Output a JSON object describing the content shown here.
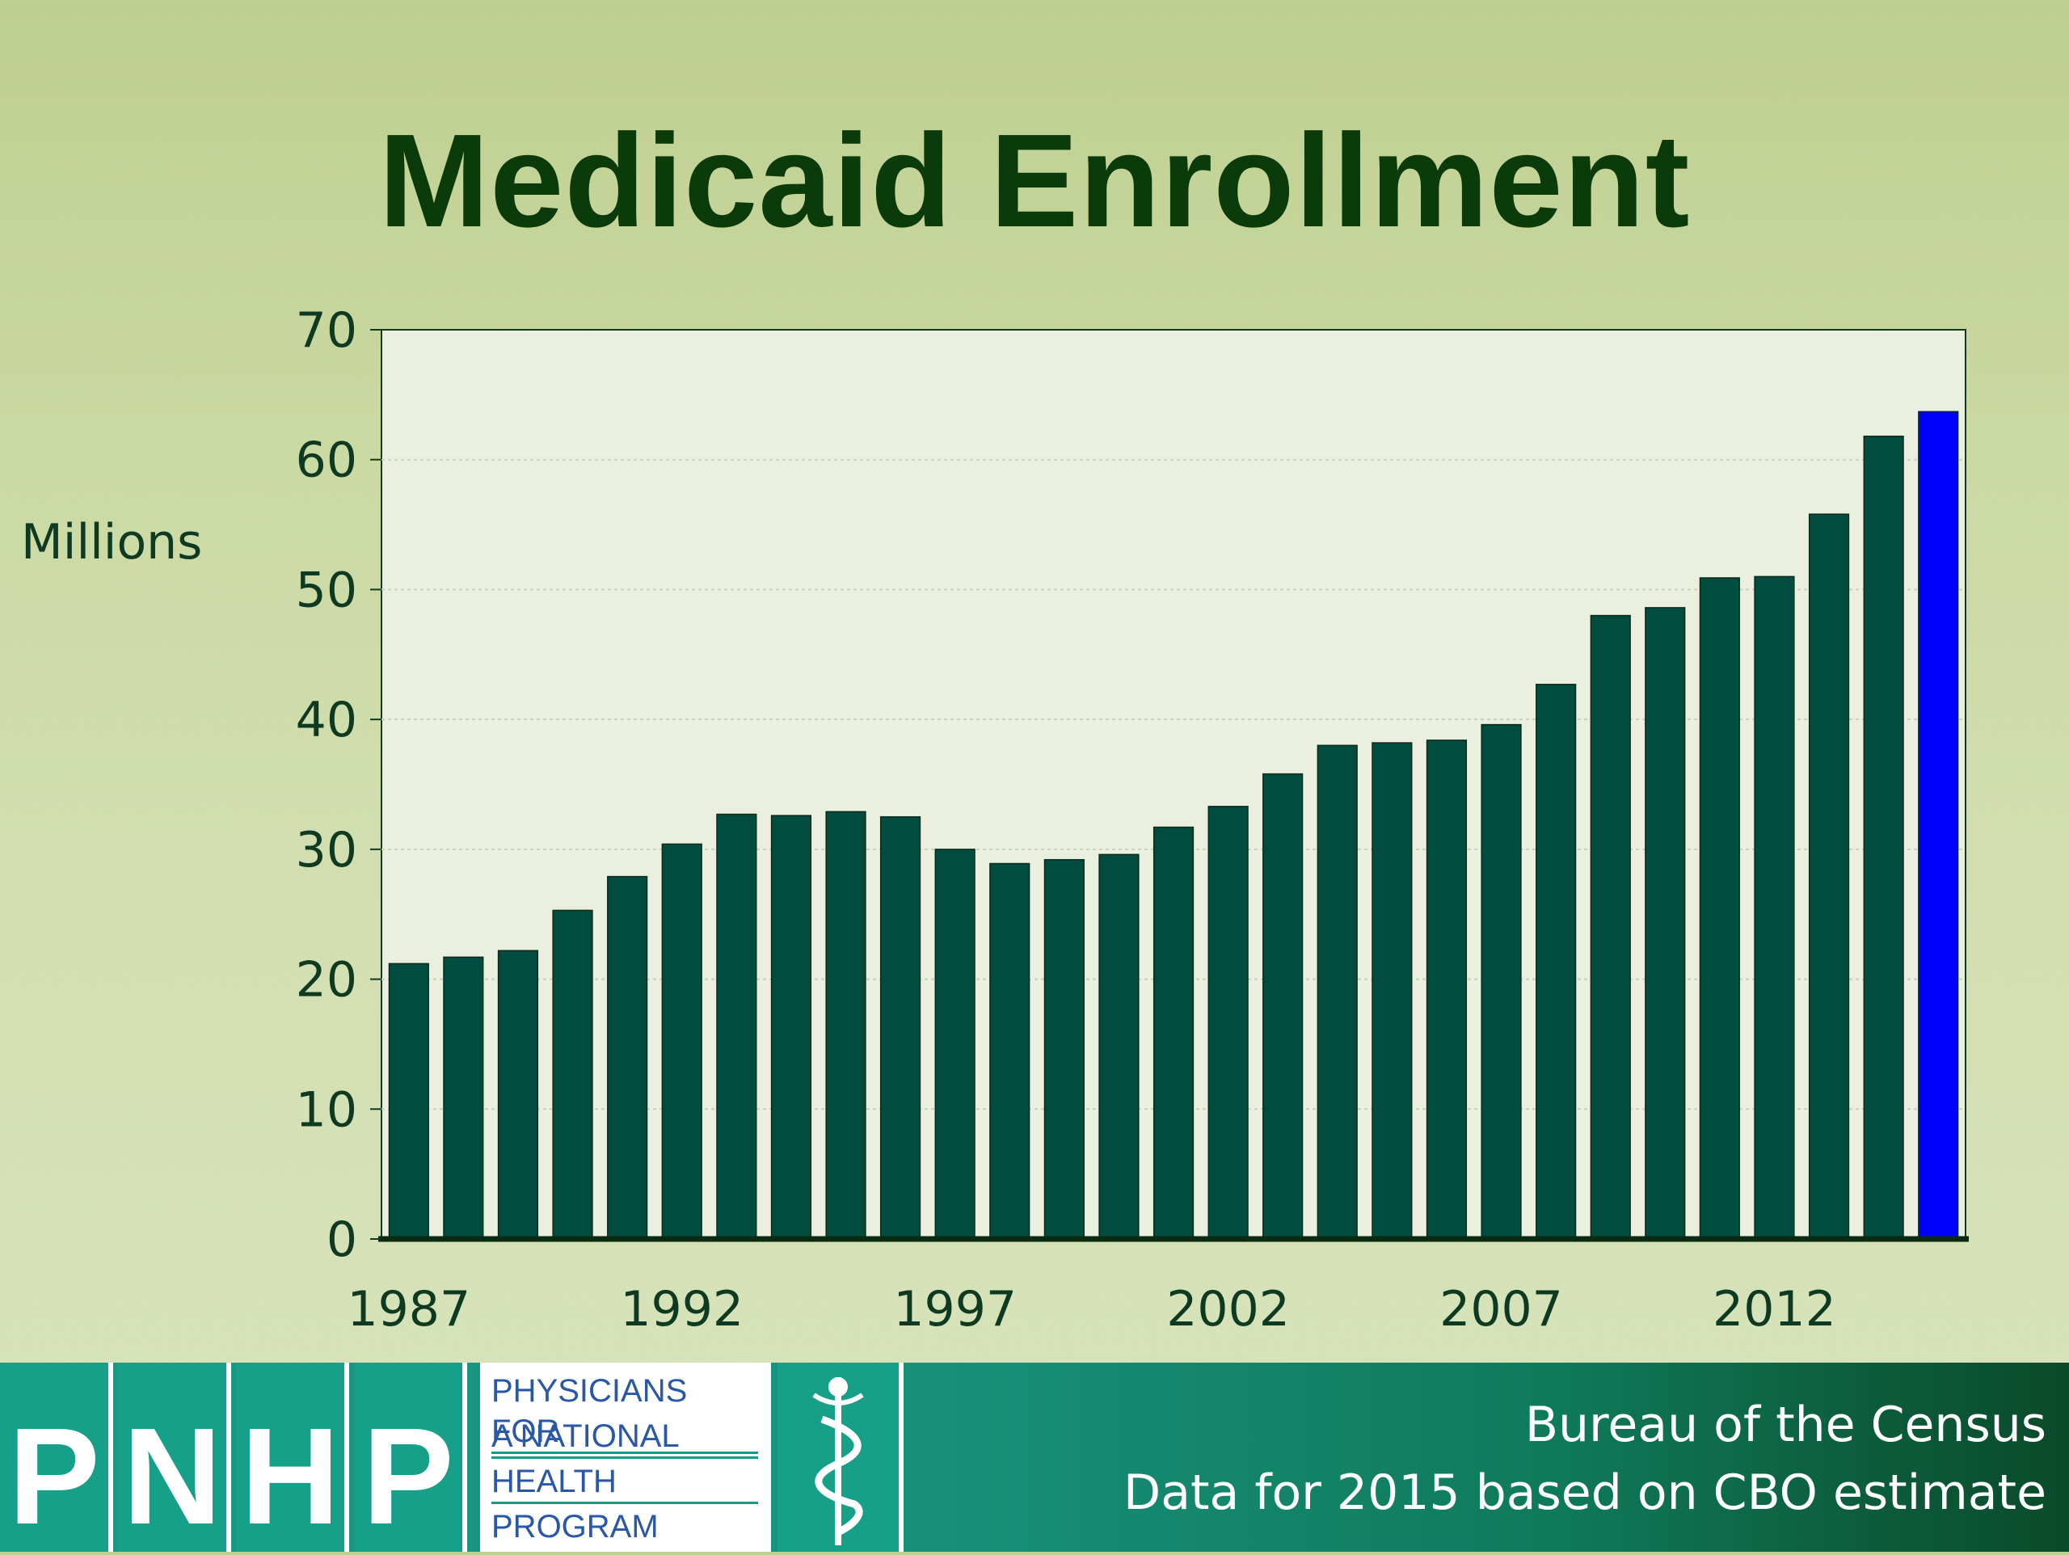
{
  "slide_title": "Medicaid Enrollment",
  "chart_data": {
    "type": "bar",
    "title": "Medicaid Enrollment",
    "ylabel": "Millions",
    "xlabel": "",
    "ylim": [
      0,
      70
    ],
    "yticks": [
      0,
      10,
      20,
      30,
      40,
      50,
      60,
      70
    ],
    "x_tick_labels": [
      "1987",
      "1992",
      "1997",
      "2002",
      "2007",
      "2012"
    ],
    "categories": [
      "1987",
      "1988",
      "1989",
      "1990",
      "1991",
      "1992",
      "1993",
      "1994",
      "1995",
      "1996",
      "1997",
      "1998",
      "1999",
      "2000",
      "2001",
      "2002",
      "2003",
      "2004",
      "2005",
      "2006",
      "2007",
      "2008",
      "2009",
      "2010",
      "2011",
      "2012",
      "2013",
      "2014",
      "2015"
    ],
    "values": [
      21.2,
      21.7,
      22.2,
      25.3,
      27.9,
      30.4,
      32.7,
      32.6,
      32.9,
      32.5,
      30.0,
      28.9,
      29.2,
      29.6,
      31.7,
      33.3,
      35.8,
      38.0,
      38.2,
      38.4,
      39.6,
      42.7,
      48.0,
      48.6,
      50.9,
      51.0,
      55.8,
      61.8,
      63.7
    ],
    "bar_color": "#004d40",
    "highlight_color": "#0000ff",
    "highlight_category": "2015",
    "grid": true,
    "plot_background": "#eaefdf"
  },
  "footer": {
    "logo_letters": [
      "P",
      "N",
      "H",
      "P"
    ],
    "logo_text_lines": [
      "PHYSICIANS FOR",
      "A NATIONAL",
      "HEALTH",
      "PROGRAM"
    ],
    "source_line_1": "Bureau of the Census",
    "source_line_2": "Data for 2015 based on CBO estimate"
  }
}
